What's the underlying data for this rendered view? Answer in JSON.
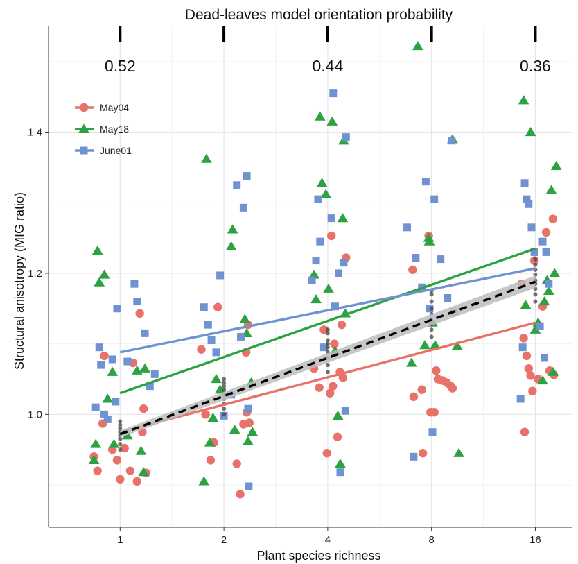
{
  "chart_data": {
    "type": "scatter",
    "title": "Dead-leaves model orientation probability",
    "xlabel": "Plant species richness",
    "ylabel": "Structural anisotropy (MIG ratio)",
    "x_scale": "log2",
    "xlim": [
      0.62,
      20.5
    ],
    "ylim": [
      0.84,
      1.55
    ],
    "x_ticks": [
      1,
      2,
      4,
      8,
      16
    ],
    "x_tick_labels": [
      "1",
      "2",
      "4",
      "8",
      "16"
    ],
    "y_ticks": [
      1.0,
      1.2,
      1.4
    ],
    "y_tick_labels": [
      "1.0",
      "1.2",
      "1.4"
    ],
    "grid": true,
    "legend_position": "top-left",
    "top_probabilities": [
      {
        "x": 1,
        "label": "0.52"
      },
      {
        "x": 4,
        "label": "0.44"
      },
      {
        "x": 16,
        "label": "0.36"
      }
    ],
    "top_tick_marks": [
      1,
      2,
      4,
      8,
      16
    ],
    "series": [
      {
        "name": "May04",
        "marker": "circle",
        "color": "#E8716A",
        "points": [
          [
            0.84,
            0.94
          ],
          [
            0.86,
            0.92
          ],
          [
            0.89,
            0.987
          ],
          [
            0.9,
            1.083
          ],
          [
            0.95,
            0.95
          ],
          [
            0.98,
            0.935
          ],
          [
            1.0,
            0.908
          ],
          [
            1.03,
            0.952
          ],
          [
            1.07,
            0.92
          ],
          [
            1.09,
            1.073
          ],
          [
            1.12,
            0.905
          ],
          [
            1.14,
            1.143
          ],
          [
            1.16,
            0.975
          ],
          [
            1.17,
            1.008
          ],
          [
            1.19,
            0.917
          ],
          [
            1.72,
            1.092
          ],
          [
            1.77,
            1.0
          ],
          [
            1.83,
            0.935
          ],
          [
            1.87,
            0.96
          ],
          [
            1.92,
            1.152
          ],
          [
            2.18,
            0.93
          ],
          [
            2.23,
            0.887
          ],
          [
            2.28,
            0.986
          ],
          [
            2.32,
            1.088
          ],
          [
            2.35,
            1.127
          ],
          [
            2.37,
            0.988
          ],
          [
            2.33,
            1.003
          ],
          [
            3.65,
            1.065
          ],
          [
            3.78,
            1.038
          ],
          [
            3.9,
            1.12
          ],
          [
            3.98,
            0.945
          ],
          [
            4.06,
            1.03
          ],
          [
            4.1,
            1.253
          ],
          [
            4.14,
            1.04
          ],
          [
            4.18,
            1.1
          ],
          [
            4.27,
            0.968
          ],
          [
            4.34,
            1.06
          ],
          [
            4.39,
            1.127
          ],
          [
            4.43,
            1.052
          ],
          [
            4.52,
            1.222
          ],
          [
            7.05,
            1.205
          ],
          [
            7.1,
            1.025
          ],
          [
            7.5,
            1.035
          ],
          [
            7.55,
            0.945
          ],
          [
            7.85,
            1.253
          ],
          [
            7.95,
            1.003
          ],
          [
            8.15,
            1.003
          ],
          [
            8.25,
            1.062
          ],
          [
            8.35,
            1.05
          ],
          [
            8.6,
            1.048
          ],
          [
            8.85,
            1.045
          ],
          [
            9.1,
            1.04
          ],
          [
            9.2,
            1.037
          ],
          [
            14.6,
            1.185
          ],
          [
            14.8,
            1.108
          ],
          [
            14.9,
            0.975
          ],
          [
            15.1,
            1.083
          ],
          [
            15.3,
            1.065
          ],
          [
            15.5,
            1.055
          ],
          [
            15.7,
            1.033
          ],
          [
            15.9,
            1.218
          ],
          [
            16.3,
            1.05
          ],
          [
            16.8,
            1.153
          ],
          [
            17.2,
            1.258
          ],
          [
            17.6,
            1.062
          ],
          [
            18.0,
            1.277
          ],
          [
            18.1,
            1.056
          ]
        ],
        "fit": {
          "x0": 1,
          "y0": 0.975,
          "x1": 16,
          "y1": 1.13
        }
      },
      {
        "name": "May18",
        "marker": "triangle",
        "color": "#2CA242",
        "points": [
          [
            0.84,
            0.935
          ],
          [
            0.85,
            0.958
          ],
          [
            0.86,
            1.232
          ],
          [
            0.87,
            1.187
          ],
          [
            0.9,
            1.198
          ],
          [
            0.92,
            1.022
          ],
          [
            0.95,
            1.06
          ],
          [
            0.96,
            0.958
          ],
          [
            1.05,
            0.97
          ],
          [
            1.12,
            1.062
          ],
          [
            1.15,
            0.948
          ],
          [
            1.18,
            1.065
          ],
          [
            1.17,
            0.918
          ],
          [
            1.75,
            0.905
          ],
          [
            1.78,
            1.362
          ],
          [
            1.82,
            0.96
          ],
          [
            1.86,
            0.995
          ],
          [
            1.9,
            1.05
          ],
          [
            1.95,
            1.035
          ],
          [
            2.1,
            1.238
          ],
          [
            2.12,
            1.262
          ],
          [
            2.15,
            0.978
          ],
          [
            2.3,
            1.135
          ],
          [
            2.33,
            1.115
          ],
          [
            2.35,
            0.962
          ],
          [
            2.4,
            1.045
          ],
          [
            2.42,
            0.975
          ],
          [
            3.65,
            1.198
          ],
          [
            3.7,
            1.163
          ],
          [
            3.8,
            1.422
          ],
          [
            3.85,
            1.328
          ],
          [
            3.95,
            1.312
          ],
          [
            4.02,
            1.178
          ],
          [
            4.12,
            1.415
          ],
          [
            4.2,
            1.09
          ],
          [
            4.28,
            0.998
          ],
          [
            4.35,
            0.93
          ],
          [
            4.42,
            1.278
          ],
          [
            4.45,
            1.388
          ],
          [
            4.5,
            1.143
          ],
          [
            7.0,
            1.073
          ],
          [
            7.3,
            1.522
          ],
          [
            7.65,
            1.098
          ],
          [
            7.85,
            1.25
          ],
          [
            7.88,
            1.245
          ],
          [
            8.05,
            1.13
          ],
          [
            8.2,
            1.098
          ],
          [
            9.2,
            1.39
          ],
          [
            9.5,
            1.097
          ],
          [
            9.6,
            0.945
          ],
          [
            14.8,
            1.445
          ],
          [
            15.0,
            1.155
          ],
          [
            15.5,
            1.4
          ],
          [
            16.0,
            1.12
          ],
          [
            16.3,
            1.13
          ],
          [
            16.8,
            1.048
          ],
          [
            17.0,
            1.16
          ],
          [
            17.3,
            1.19
          ],
          [
            17.5,
            1.175
          ],
          [
            17.8,
            1.318
          ],
          [
            18.0,
            1.06
          ],
          [
            18.2,
            1.2
          ],
          [
            18.4,
            1.352
          ]
        ],
        "fit": {
          "x0": 1,
          "y0": 1.03,
          "x1": 16,
          "y1": 1.235
        }
      },
      {
        "name": "June01",
        "marker": "square",
        "color": "#6F93D1",
        "points": [
          [
            0.85,
            1.01
          ],
          [
            0.87,
            1.095
          ],
          [
            0.88,
            1.07
          ],
          [
            0.9,
            1.0
          ],
          [
            0.92,
            0.993
          ],
          [
            0.95,
            1.078
          ],
          [
            0.97,
            1.018
          ],
          [
            0.98,
            1.15
          ],
          [
            1.05,
            1.075
          ],
          [
            1.1,
            1.185
          ],
          [
            1.12,
            1.16
          ],
          [
            1.18,
            1.115
          ],
          [
            1.22,
            1.04
          ],
          [
            1.26,
            1.057
          ],
          [
            1.75,
            1.152
          ],
          [
            1.8,
            1.127
          ],
          [
            1.84,
            1.105
          ],
          [
            1.9,
            1.088
          ],
          [
            1.95,
            1.197
          ],
          [
            2.0,
            0.998
          ],
          [
            2.1,
            1.028
          ],
          [
            2.18,
            1.325
          ],
          [
            2.24,
            1.11
          ],
          [
            2.28,
            1.293
          ],
          [
            2.33,
            1.338
          ],
          [
            2.36,
            0.898
          ],
          [
            2.35,
            1.008
          ],
          [
            3.6,
            1.19
          ],
          [
            3.7,
            1.218
          ],
          [
            3.75,
            1.305
          ],
          [
            3.8,
            1.245
          ],
          [
            3.9,
            1.095
          ],
          [
            4.1,
            1.278
          ],
          [
            4.15,
            1.455
          ],
          [
            4.2,
            1.153
          ],
          [
            4.3,
            1.2
          ],
          [
            4.35,
            0.918
          ],
          [
            4.45,
            1.215
          ],
          [
            4.52,
            1.393
          ],
          [
            4.5,
            1.005
          ],
          [
            6.8,
            1.265
          ],
          [
            7.1,
            0.94
          ],
          [
            7.2,
            1.222
          ],
          [
            7.5,
            1.18
          ],
          [
            7.7,
            1.33
          ],
          [
            7.9,
            1.15
          ],
          [
            8.05,
            0.975
          ],
          [
            8.15,
            1.305
          ],
          [
            8.5,
            1.22
          ],
          [
            8.9,
            1.165
          ],
          [
            9.15,
            1.388
          ],
          [
            9.3,
            1.145
          ],
          [
            14.5,
            1.022
          ],
          [
            14.7,
            1.095
          ],
          [
            14.9,
            1.328
          ],
          [
            15.1,
            1.305
          ],
          [
            15.3,
            1.298
          ],
          [
            15.6,
            1.265
          ],
          [
            15.9,
            1.23
          ],
          [
            16.5,
            1.125
          ],
          [
            16.8,
            1.245
          ],
          [
            17.0,
            1.08
          ],
          [
            17.2,
            1.23
          ],
          [
            17.5,
            1.185
          ]
        ],
        "fit": {
          "x0": 1,
          "y0": 1.088,
          "x1": 16,
          "y1": 1.207
        }
      },
      {
        "name": "",
        "marker": "small-dot",
        "color": "#444444",
        "points": [
          [
            1,
            0.95
          ],
          [
            1,
            0.958
          ],
          [
            1,
            0.965
          ],
          [
            1,
            0.97
          ],
          [
            1,
            0.975
          ],
          [
            1,
            0.98
          ],
          [
            1,
            0.985
          ],
          [
            1,
            0.99
          ],
          [
            2,
            1.0
          ],
          [
            2,
            1.008
          ],
          [
            2,
            1.015
          ],
          [
            2,
            1.022
          ],
          [
            2,
            1.028
          ],
          [
            2,
            1.035
          ],
          [
            2,
            1.04
          ],
          [
            2,
            1.045
          ],
          [
            2,
            1.05
          ],
          [
            4,
            1.06
          ],
          [
            4,
            1.07
          ],
          [
            4,
            1.08
          ],
          [
            4,
            1.088
          ],
          [
            4,
            1.095
          ],
          [
            4,
            1.105
          ],
          [
            4,
            1.115
          ],
          [
            4,
            1.12
          ],
          [
            4,
            1.1
          ],
          [
            8,
            1.11
          ],
          [
            8,
            1.12
          ],
          [
            8,
            1.128
          ],
          [
            8,
            1.135
          ],
          [
            8,
            1.142
          ],
          [
            8,
            1.15
          ],
          [
            8,
            1.16
          ],
          [
            8,
            1.17
          ],
          [
            8,
            1.175
          ],
          [
            16,
            1.16
          ],
          [
            16,
            1.17
          ],
          [
            16,
            1.178
          ],
          [
            16,
            1.185
          ],
          [
            16,
            1.19
          ],
          [
            16,
            1.198
          ],
          [
            16,
            1.205
          ],
          [
            16,
            1.212
          ],
          [
            16,
            1.22
          ]
        ]
      }
    ],
    "overall_fit": {
      "x0": 1,
      "y0": 0.972,
      "x1": 16,
      "y1": 1.188,
      "style": "dashed",
      "color": "#000000",
      "band_color": "#BDBDBD"
    }
  }
}
